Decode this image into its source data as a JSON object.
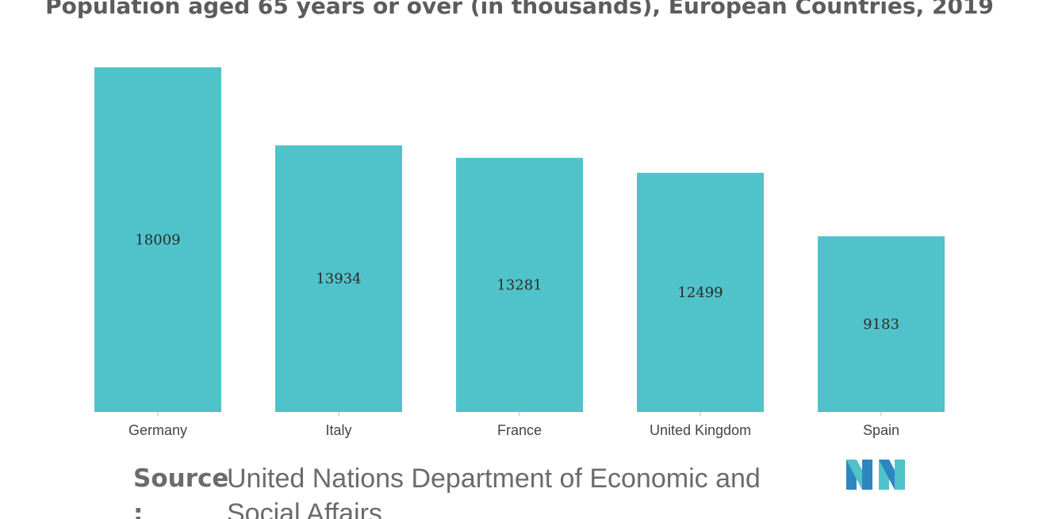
{
  "chart_data": {
    "type": "bar",
    "title": "Population aged 65 years or over (in thousands), European Countries, 2019",
    "categories": [
      "Germany",
      "Italy",
      "France",
      "United Kingdom",
      "Spain"
    ],
    "values": [
      18009,
      13934,
      13281,
      12499,
      9183
    ],
    "data_labels": [
      "18009",
      "13934",
      "13281",
      "12499",
      "9183"
    ],
    "xlabel": "",
    "ylabel": "",
    "ylim": [
      0,
      18009
    ],
    "grid": false,
    "legend": "none",
    "bar_color": "#4fc3c9"
  },
  "source": {
    "label": "Source",
    "colon": ":",
    "text": "United Nations Department of Economic and Social Affairs"
  },
  "logo": {
    "icon": "mordor-intelligence-logo-icon",
    "colors": [
      "#2e86c1",
      "#4fc3c9"
    ]
  }
}
